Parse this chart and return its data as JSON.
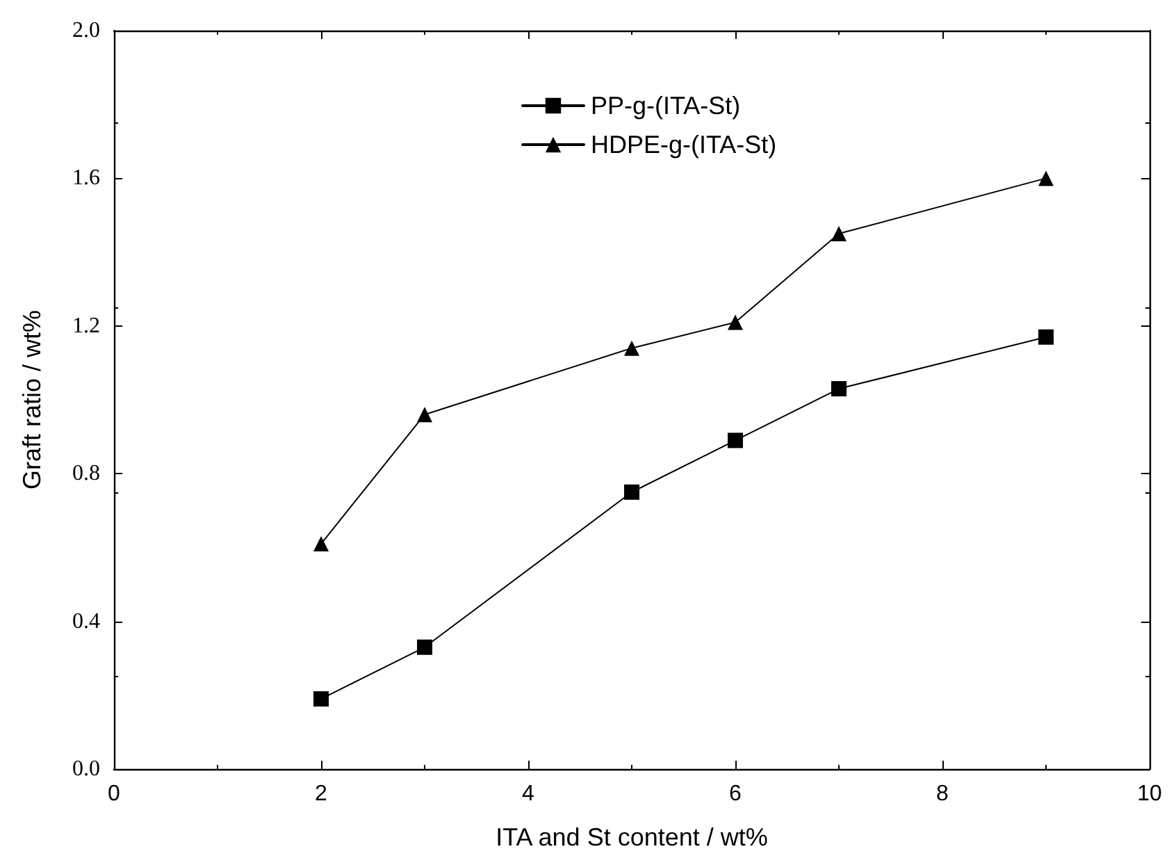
{
  "chart_data": {
    "type": "line",
    "xlabel": "ITA and St content / wt%",
    "ylabel": "Graft ratio / wt%",
    "xlim": [
      0,
      10
    ],
    "xticks": [
      0,
      2,
      4,
      6,
      8,
      10
    ],
    "ylim": [
      0,
      2.0
    ],
    "yticks": [
      {
        "value": 0,
        "label": "0.0"
      },
      {
        "value": 0.4,
        "label": "0.4"
      },
      {
        "value": 0.8,
        "label": "0.8"
      },
      {
        "value": 1.2,
        "label": "1.2"
      },
      {
        "value": 1.6,
        "label": "1.6"
      },
      {
        "value": 2.0,
        "label": "2.0"
      }
    ],
    "grid": false,
    "legend": "top",
    "line_style": "solid",
    "series": [
      {
        "name": "PP-g-(ITA-St)",
        "color": "#000000",
        "marker": "square",
        "x": [
          2,
          3,
          5,
          6,
          7,
          9
        ],
        "values": [
          0.19,
          0.33,
          0.75,
          0.89,
          1.03,
          1.17
        ]
      },
      {
        "name": "HDPE-g-(ITA-St)",
        "color": "#000000",
        "marker": "triangle",
        "x": [
          2,
          3,
          5,
          6,
          7,
          9
        ],
        "values": [
          0.61,
          0.96,
          1.14,
          1.21,
          1.45,
          1.6
        ]
      }
    ]
  }
}
